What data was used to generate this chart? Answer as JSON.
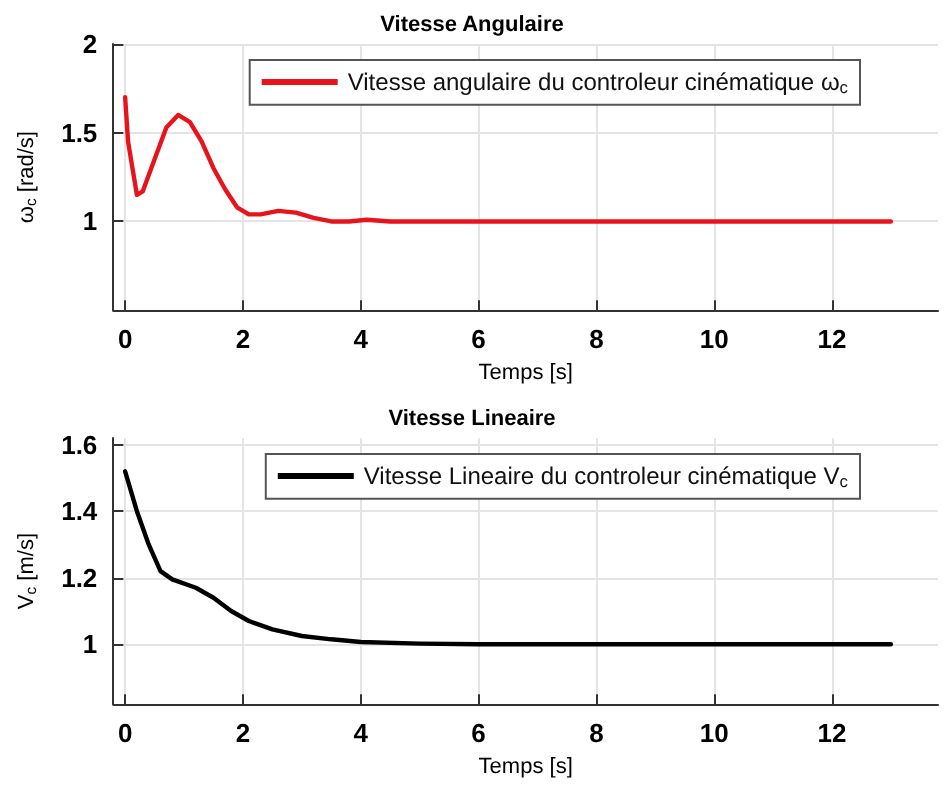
{
  "chart_data": [
    {
      "type": "line",
      "title": "Vitesse Angulaire",
      "xlabel": "Temps [s]",
      "ylabel": "ω$_{c}$ [rad/s]",
      "xlim": [
        -0.2,
        13.8
      ],
      "xticks": [
        0,
        2,
        4,
        6,
        8,
        10,
        12
      ],
      "ylim": [
        0.5,
        2
      ],
      "yticks": [
        1,
        1.5,
        2
      ],
      "grid": true,
      "legend": "top right",
      "line_style": "solid",
      "marker": "none",
      "series": [
        {
          "name": "Vitesse angulaire du controleur cinématique ω$_{c}$",
          "color": "#e8141c",
          "x": [
            0,
            0.05,
            0.2,
            0.3,
            0.5,
            0.7,
            0.9,
            1.1,
            1.3,
            1.5,
            1.7,
            1.9,
            2.1,
            2.3,
            2.6,
            2.9,
            3.2,
            3.5,
            3.8,
            4.1,
            4.5,
            5,
            13
          ],
          "values": [
            1.7,
            1.45,
            1.15,
            1.17,
            1.35,
            1.53,
            1.6,
            1.56,
            1.45,
            1.3,
            1.18,
            1.08,
            1.04,
            1.04,
            1.06,
            1.05,
            1.02,
            1.0,
            1.0,
            1.01,
            1.0,
            1.0,
            1.0
          ]
        }
      ]
    },
    {
      "type": "line",
      "title": "Vitesse Lineaire",
      "xlabel": "Temps [s]",
      "ylabel": "V$_{c}$ [m/s]",
      "xlim": [
        -0.2,
        13.8
      ],
      "xticks": [
        0,
        2,
        4,
        6,
        8,
        10,
        12
      ],
      "ylim": [
        0.82,
        1.62
      ],
      "yticks": [
        1,
        1.2,
        1.4,
        1.6
      ],
      "grid": true,
      "legend": "top right",
      "line_style": "solid",
      "marker": "none",
      "series": [
        {
          "name": "Vitesse Lineaire du controleur cinématique V$_{c}$",
          "color": "#000000",
          "x": [
            0,
            0.2,
            0.4,
            0.6,
            0.8,
            1.2,
            1.5,
            1.8,
            2.1,
            2.5,
            3,
            3.5,
            4,
            5,
            6,
            13
          ],
          "values": [
            1.52,
            1.4,
            1.3,
            1.22,
            1.195,
            1.17,
            1.14,
            1.1,
            1.07,
            1.045,
            1.025,
            1.015,
            1.007,
            1.002,
            1.0,
            1.0
          ]
        }
      ]
    }
  ]
}
